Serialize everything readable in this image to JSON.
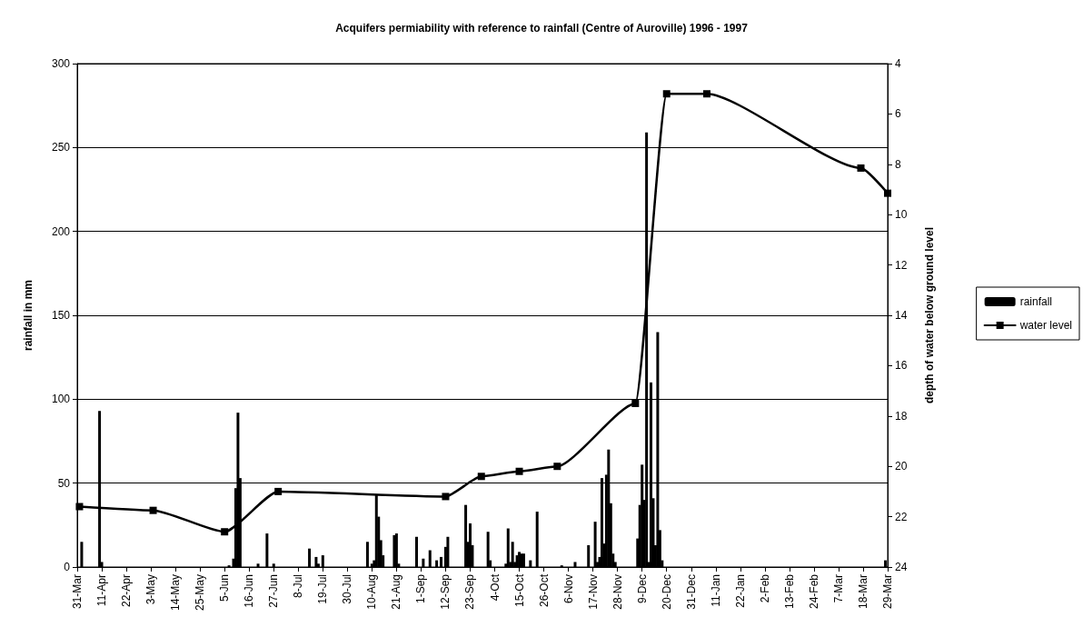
{
  "chart_data": {
    "type": "bar",
    "title": "Acquifers permiability with reference to rainfall (Centre of Auroville) 1996 - 1997",
    "ylabel": "rainfall in mm",
    "y2label": "depth of water below ground level",
    "xlim": [
      "1996-03-31",
      "1997-03-29"
    ],
    "xticks": [
      {
        "value": "1996-03-31",
        "label": "31-Mar"
      },
      {
        "value": "1996-04-11",
        "label": "11-Apr"
      },
      {
        "value": "1996-04-22",
        "label": "22-Apr"
      },
      {
        "value": "1996-05-03",
        "label": "3-May"
      },
      {
        "value": "1996-05-14",
        "label": "14-May"
      },
      {
        "value": "1996-05-25",
        "label": "25-May"
      },
      {
        "value": "1996-06-05",
        "label": "5-Jun"
      },
      {
        "value": "1996-06-16",
        "label": "16-Jun"
      },
      {
        "value": "1996-06-27",
        "label": "27-Jun"
      },
      {
        "value": "1996-07-08",
        "label": "8-Jul"
      },
      {
        "value": "1996-07-19",
        "label": "19-Jul"
      },
      {
        "value": "1996-07-30",
        "label": "30-Jul"
      },
      {
        "value": "1996-08-10",
        "label": "10-Aug"
      },
      {
        "value": "1996-08-21",
        "label": "21-Aug"
      },
      {
        "value": "1996-09-01",
        "label": "1-Sep"
      },
      {
        "value": "1996-09-12",
        "label": "12-Sep"
      },
      {
        "value": "1996-09-23",
        "label": "23-Sep"
      },
      {
        "value": "1996-10-04",
        "label": "4-Oct"
      },
      {
        "value": "1996-10-15",
        "label": "15-Oct"
      },
      {
        "value": "1996-10-26",
        "label": "26-Oct"
      },
      {
        "value": "1996-11-06",
        "label": "6-Nov"
      },
      {
        "value": "1996-11-17",
        "label": "17-Nov"
      },
      {
        "value": "1996-11-28",
        "label": "28-Nov"
      },
      {
        "value": "1996-12-09",
        "label": "9-Dec"
      },
      {
        "value": "1996-12-20",
        "label": "20-Dec"
      },
      {
        "value": "1996-12-31",
        "label": "31-Dec"
      },
      {
        "value": "1997-01-11",
        "label": "11-Jan"
      },
      {
        "value": "1997-01-22",
        "label": "22-Jan"
      },
      {
        "value": "1997-02-02",
        "label": "2-Feb"
      },
      {
        "value": "1997-02-13",
        "label": "13-Feb"
      },
      {
        "value": "1997-02-24",
        "label": "24-Feb"
      },
      {
        "value": "1997-03-07",
        "label": "7-Mar"
      },
      {
        "value": "1997-03-18",
        "label": "18-Mar"
      },
      {
        "value": "1997-03-29",
        "label": "29-Mar"
      }
    ],
    "ylim": [
      0,
      300
    ],
    "yticks": [
      0,
      50,
      100,
      150,
      200,
      250,
      300
    ],
    "y2lim": [
      24,
      4
    ],
    "y2ticks": [
      4,
      6,
      8,
      10,
      12,
      14,
      16,
      18,
      20,
      22,
      24
    ],
    "grid": "y",
    "legend": "right",
    "marker": "square",
    "line_style": "solid",
    "series": [
      {
        "name": "rainfall",
        "color": "#000000",
        "x": [
          "1996-04-02",
          "1996-04-10",
          "1996-04-11",
          "1996-06-07",
          "1996-06-09",
          "1996-06-10",
          "1996-06-11",
          "1996-06-12",
          "1996-06-20",
          "1996-06-24",
          "1996-06-27",
          "1996-07-13",
          "1996-07-16",
          "1996-07-17",
          "1996-07-19",
          "1996-08-08",
          "1996-08-10",
          "1996-08-11",
          "1996-08-12",
          "1996-08-13",
          "1996-08-14",
          "1996-08-15",
          "1996-08-20",
          "1996-08-21",
          "1996-08-22",
          "1996-08-30",
          "1996-09-02",
          "1996-09-05",
          "1996-09-08",
          "1996-09-10",
          "1996-09-12",
          "1996-09-13",
          "1996-09-21",
          "1996-09-22",
          "1996-09-23",
          "1996-09-24",
          "1996-10-01",
          "1996-10-02",
          "1996-10-09",
          "1996-10-10",
          "1996-10-11",
          "1996-10-12",
          "1996-10-13",
          "1996-10-14",
          "1996-10-15",
          "1996-10-16",
          "1996-10-17",
          "1996-10-20",
          "1996-10-23",
          "1996-11-03",
          "1996-11-09",
          "1996-11-15",
          "1996-11-18",
          "1996-11-19",
          "1996-11-20",
          "1996-11-21",
          "1996-11-22",
          "1996-11-23",
          "1996-11-24",
          "1996-11-25",
          "1996-11-26",
          "1996-11-27",
          "1996-12-07",
          "1996-12-08",
          "1996-12-09",
          "1996-12-10",
          "1996-12-11",
          "1996-12-12",
          "1996-12-13",
          "1996-12-14",
          "1996-12-15",
          "1996-12-16",
          "1996-12-17",
          "1996-12-18",
          "1997-03-28"
        ],
        "values": [
          15,
          93,
          3,
          1,
          5,
          47,
          92,
          53,
          2,
          20,
          2,
          11,
          6,
          2,
          7,
          15,
          2,
          4,
          43,
          30,
          16,
          7,
          19,
          20,
          2,
          18,
          5,
          10,
          4,
          6,
          12,
          18,
          37,
          15,
          26,
          13,
          21,
          4,
          2,
          23,
          3,
          15,
          3,
          7,
          9,
          8,
          8,
          4,
          33,
          1,
          3,
          13,
          27,
          3,
          6,
          53,
          14,
          55,
          70,
          38,
          8,
          3,
          17,
          37,
          61,
          40,
          259,
          3,
          110,
          41,
          13,
          140,
          22,
          4,
          4
        ]
      },
      {
        "name": "water level",
        "type": "line",
        "axis": "y2",
        "color": "#000000",
        "x": [
          "1996-04-01",
          "1996-05-04",
          "1996-06-05",
          "1996-06-29",
          "1996-09-12",
          "1996-09-28",
          "1996-10-15",
          "1996-11-01",
          "1996-12-06",
          "1996-12-20",
          "1997-01-07",
          "1997-03-17",
          "1997-03-29"
        ],
        "values": [
          21.6,
          21.75,
          22.6,
          21.0,
          21.2,
          20.4,
          20.2,
          20.0,
          17.5,
          5.2,
          5.2,
          8.15,
          9.15
        ]
      }
    ]
  }
}
